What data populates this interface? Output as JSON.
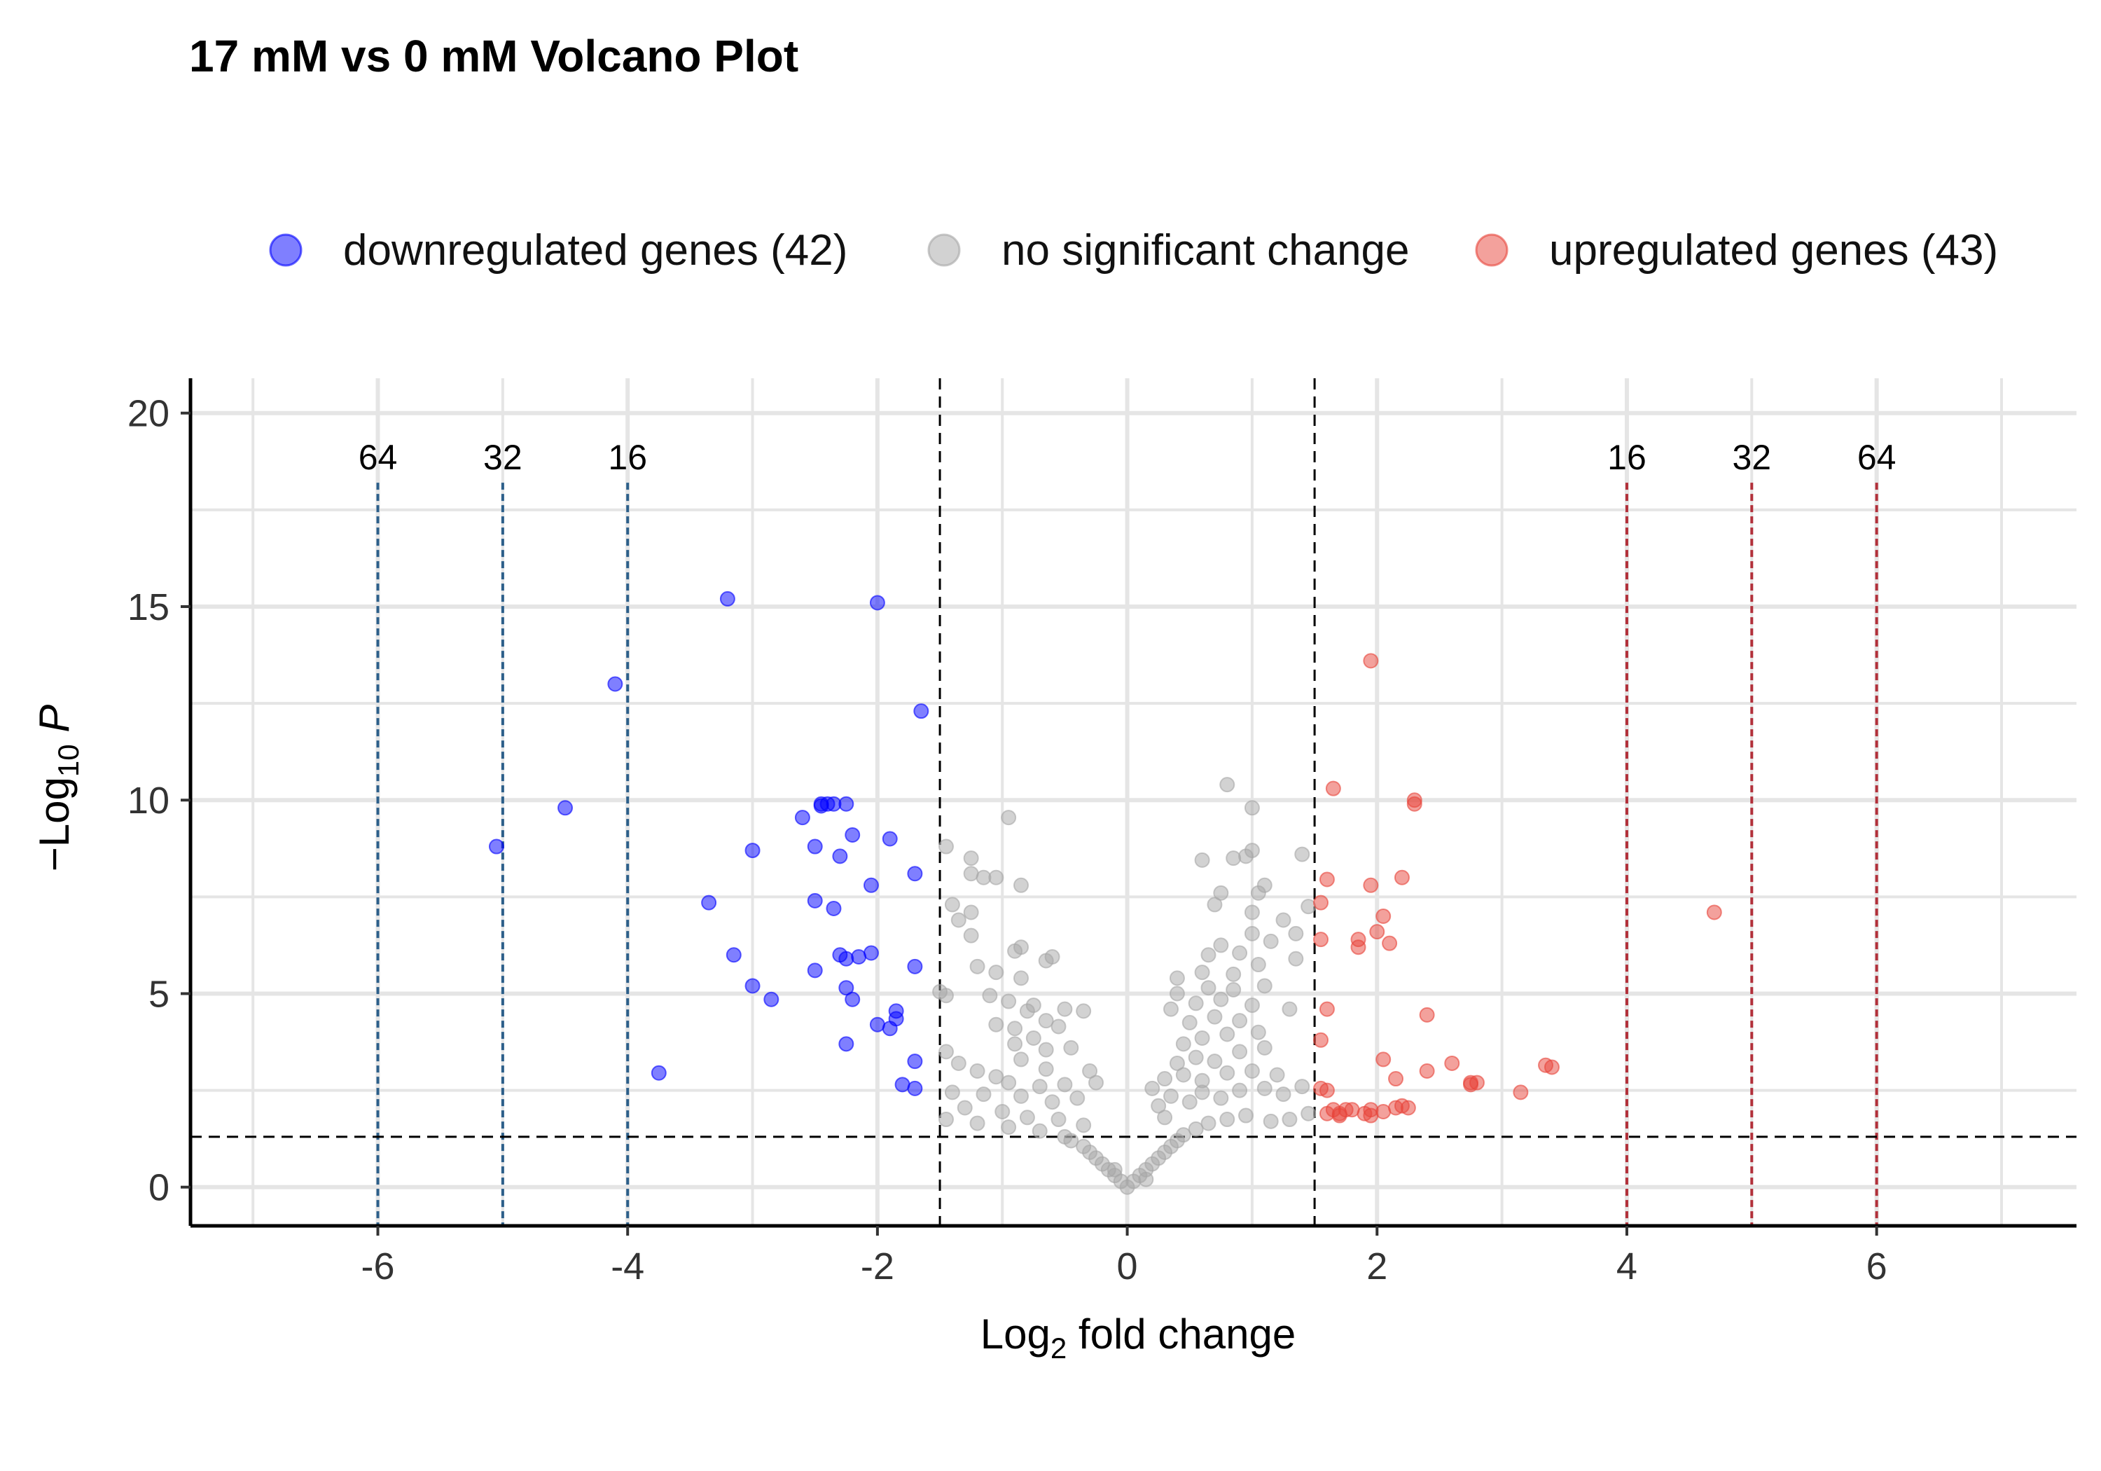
{
  "chart_data": {
    "type": "scatter",
    "title": "17 mM vs 0 mM Volcano Plot",
    "xlabel": {
      "prefix": "Log",
      "sub": "2",
      "suffix": " fold change"
    },
    "ylabel": {
      "prefix": "−Log",
      "sub": "10",
      "suffix": " ",
      "italic": "P"
    },
    "xlim": [
      -7.5,
      7.6
    ],
    "ylim": [
      -1,
      20.9
    ],
    "xticks": [
      -6,
      -4,
      -2,
      0,
      2,
      4,
      6
    ],
    "xtick_labels": [
      "-6",
      "-4",
      "-2",
      "0",
      "2",
      "4",
      "6"
    ],
    "yticks": [
      0,
      5,
      10,
      15,
      20
    ],
    "ytick_labels": [
      "0",
      "5",
      "10",
      "15",
      "20"
    ],
    "grid": true,
    "legend_position": "top",
    "thresholds": {
      "fold_change": 1.5,
      "p_value_line": 1.3
    },
    "fold_change_lines": [
      {
        "x": -6,
        "label": "64",
        "color": "#2c5f8a"
      },
      {
        "x": -5,
        "label": "32",
        "color": "#2c5f8a"
      },
      {
        "x": -4,
        "label": "16",
        "color": "#2c5f8a"
      },
      {
        "x": 4,
        "label": "16",
        "color": "#b2303a"
      },
      {
        "x": 5,
        "label": "32",
        "color": "#b2303a"
      },
      {
        "x": 6,
        "label": "64",
        "color": "#b2303a"
      }
    ],
    "series": [
      {
        "name": "downregulated genes (42)",
        "color": "#0000ff",
        "points": [
          [
            -3.2,
            15.2
          ],
          [
            -2.0,
            15.1
          ],
          [
            -4.1,
            13.0
          ],
          [
            -1.65,
            12.3
          ],
          [
            -4.5,
            9.8
          ],
          [
            -5.05,
            8.8
          ],
          [
            -2.45,
            9.9
          ],
          [
            -2.4,
            9.9
          ],
          [
            -2.35,
            9.9
          ],
          [
            -2.25,
            9.9
          ],
          [
            -2.6,
            9.55
          ],
          [
            -1.9,
            9.0
          ],
          [
            -2.2,
            9.1
          ],
          [
            -2.5,
            8.8
          ],
          [
            -3.0,
            8.7
          ],
          [
            -2.3,
            8.55
          ],
          [
            -1.7,
            8.1
          ],
          [
            -2.05,
            7.8
          ],
          [
            -3.35,
            7.35
          ],
          [
            -2.5,
            7.4
          ],
          [
            -2.35,
            7.2
          ],
          [
            -3.15,
            6.0
          ],
          [
            -2.3,
            6.0
          ],
          [
            -2.05,
            6.05
          ],
          [
            -2.25,
            5.9
          ],
          [
            -2.15,
            5.95
          ],
          [
            -2.5,
            5.6
          ],
          [
            -1.7,
            5.7
          ],
          [
            -3.0,
            5.2
          ],
          [
            -2.25,
            5.15
          ],
          [
            -2.85,
            4.85
          ],
          [
            -2.2,
            4.85
          ],
          [
            -1.85,
            4.55
          ],
          [
            -1.85,
            4.35
          ],
          [
            -2.0,
            4.2
          ],
          [
            -1.9,
            4.1
          ],
          [
            -2.25,
            3.7
          ],
          [
            -1.7,
            3.25
          ],
          [
            -3.75,
            2.95
          ],
          [
            -1.8,
            2.65
          ],
          [
            -1.7,
            2.55
          ],
          [
            -2.45,
            9.85
          ]
        ]
      },
      {
        "name": "no significant change",
        "color": "#a6a6a6",
        "points": [
          [
            -1.45,
            8.8
          ],
          [
            -1.25,
            8.5
          ],
          [
            -1.25,
            8.1
          ],
          [
            -1.15,
            8.0
          ],
          [
            -1.05,
            8.0
          ],
          [
            -0.85,
            7.8
          ],
          [
            -0.95,
            9.55
          ],
          [
            -1.4,
            7.3
          ],
          [
            -1.25,
            7.1
          ],
          [
            -1.35,
            6.9
          ],
          [
            -1.25,
            6.5
          ],
          [
            -0.85,
            6.2
          ],
          [
            -0.9,
            6.1
          ],
          [
            -0.6,
            5.95
          ],
          [
            -0.65,
            5.85
          ],
          [
            -1.2,
            5.7
          ],
          [
            -1.05,
            5.55
          ],
          [
            -0.85,
            5.4
          ],
          [
            -1.5,
            5.05
          ],
          [
            -1.45,
            4.95
          ],
          [
            -1.1,
            4.95
          ],
          [
            -0.95,
            4.8
          ],
          [
            -0.75,
            4.7
          ],
          [
            -0.8,
            4.55
          ],
          [
            -0.5,
            4.6
          ],
          [
            -0.35,
            4.55
          ],
          [
            -0.65,
            4.3
          ],
          [
            -1.05,
            4.2
          ],
          [
            -0.9,
            4.1
          ],
          [
            -0.55,
            4.15
          ],
          [
            -0.75,
            3.85
          ],
          [
            -0.9,
            3.7
          ],
          [
            -1.45,
            3.5
          ],
          [
            -0.65,
            3.55
          ],
          [
            -0.45,
            3.6
          ],
          [
            -0.85,
            3.3
          ],
          [
            -1.35,
            3.2
          ],
          [
            -1.2,
            3.0
          ],
          [
            -0.65,
            3.05
          ],
          [
            -0.3,
            3.0
          ],
          [
            -1.05,
            2.85
          ],
          [
            -0.95,
            2.7
          ],
          [
            -0.7,
            2.6
          ],
          [
            -0.5,
            2.65
          ],
          [
            -0.25,
            2.7
          ],
          [
            -1.4,
            2.45
          ],
          [
            -1.15,
            2.4
          ],
          [
            -0.85,
            2.35
          ],
          [
            -0.6,
            2.2
          ],
          [
            -0.4,
            2.3
          ],
          [
            -1.3,
            2.05
          ],
          [
            -1.0,
            1.95
          ],
          [
            -0.8,
            1.8
          ],
          [
            -0.55,
            1.75
          ],
          [
            -0.35,
            1.6
          ],
          [
            -1.45,
            1.75
          ],
          [
            -1.2,
            1.65
          ],
          [
            -0.95,
            1.55
          ],
          [
            -0.7,
            1.45
          ],
          [
            -0.5,
            1.3
          ],
          [
            -0.45,
            1.2
          ],
          [
            -0.35,
            1.05
          ],
          [
            -0.3,
            0.9
          ],
          [
            -0.25,
            0.75
          ],
          [
            -0.2,
            0.6
          ],
          [
            -0.15,
            0.45
          ],
          [
            -0.1,
            0.3
          ],
          [
            -0.05,
            0.15
          ],
          [
            0.0,
            0.0
          ],
          [
            0.05,
            0.15
          ],
          [
            0.1,
            0.3
          ],
          [
            0.15,
            0.45
          ],
          [
            0.2,
            0.6
          ],
          [
            0.25,
            0.75
          ],
          [
            0.3,
            0.9
          ],
          [
            0.35,
            1.05
          ],
          [
            0.4,
            1.2
          ],
          [
            0.45,
            1.35
          ],
          [
            0.55,
            1.5
          ],
          [
            0.65,
            1.65
          ],
          [
            0.8,
            1.75
          ],
          [
            0.95,
            1.85
          ],
          [
            1.15,
            1.7
          ],
          [
            1.3,
            1.75
          ],
          [
            1.45,
            1.9
          ],
          [
            0.3,
            1.8
          ],
          [
            0.25,
            2.1
          ],
          [
            0.35,
            2.35
          ],
          [
            0.5,
            2.2
          ],
          [
            0.6,
            2.45
          ],
          [
            0.75,
            2.3
          ],
          [
            0.9,
            2.5
          ],
          [
            1.1,
            2.55
          ],
          [
            1.25,
            2.4
          ],
          [
            1.4,
            2.6
          ],
          [
            0.2,
            2.55
          ],
          [
            0.3,
            2.8
          ],
          [
            0.45,
            2.9
          ],
          [
            0.6,
            2.75
          ],
          [
            0.8,
            2.95
          ],
          [
            1.0,
            3.0
          ],
          [
            1.2,
            2.9
          ],
          [
            0.4,
            3.2
          ],
          [
            0.55,
            3.35
          ],
          [
            0.7,
            3.25
          ],
          [
            0.9,
            3.5
          ],
          [
            1.1,
            3.6
          ],
          [
            0.45,
            3.7
          ],
          [
            0.6,
            3.85
          ],
          [
            0.8,
            3.95
          ],
          [
            1.05,
            4.0
          ],
          [
            0.5,
            4.25
          ],
          [
            0.7,
            4.4
          ],
          [
            0.9,
            4.3
          ],
          [
            0.35,
            4.6
          ],
          [
            0.55,
            4.75
          ],
          [
            0.75,
            4.85
          ],
          [
            1.0,
            4.7
          ],
          [
            1.3,
            4.6
          ],
          [
            0.4,
            5.0
          ],
          [
            0.65,
            5.15
          ],
          [
            0.85,
            5.1
          ],
          [
            1.1,
            5.2
          ],
          [
            0.4,
            5.4
          ],
          [
            0.6,
            5.55
          ],
          [
            0.85,
            5.5
          ],
          [
            1.05,
            5.75
          ],
          [
            1.35,
            5.9
          ],
          [
            0.65,
            6.0
          ],
          [
            0.9,
            6.05
          ],
          [
            1.15,
            6.35
          ],
          [
            1.35,
            6.55
          ],
          [
            0.75,
            6.25
          ],
          [
            1.0,
            6.55
          ],
          [
            1.25,
            6.9
          ],
          [
            0.7,
            7.3
          ],
          [
            1.0,
            7.1
          ],
          [
            1.45,
            7.25
          ],
          [
            0.75,
            7.6
          ],
          [
            1.05,
            7.6
          ],
          [
            1.1,
            7.8
          ],
          [
            1.4,
            8.6
          ],
          [
            0.85,
            8.5
          ],
          [
            0.95,
            8.55
          ],
          [
            1.0,
            8.7
          ],
          [
            0.6,
            8.45
          ],
          [
            1.0,
            9.8
          ],
          [
            0.8,
            10.4
          ],
          [
            -0.1,
            0.45
          ],
          [
            0.15,
            0.2
          ]
        ]
      },
      {
        "name": "upregulated genes (43)",
        "color": "#e8443a",
        "points": [
          [
            1.95,
            13.6
          ],
          [
            1.65,
            10.3
          ],
          [
            2.3,
            10.0
          ],
          [
            2.3,
            9.9
          ],
          [
            1.6,
            7.95
          ],
          [
            2.2,
            8.0
          ],
          [
            1.95,
            7.8
          ],
          [
            1.55,
            7.35
          ],
          [
            2.05,
            7.0
          ],
          [
            4.7,
            7.1
          ],
          [
            1.55,
            6.4
          ],
          [
            1.85,
            6.4
          ],
          [
            2.0,
            6.6
          ],
          [
            2.1,
            6.3
          ],
          [
            1.85,
            6.2
          ],
          [
            1.6,
            4.6
          ],
          [
            2.4,
            4.45
          ],
          [
            1.55,
            3.8
          ],
          [
            2.05,
            3.3
          ],
          [
            2.6,
            3.2
          ],
          [
            3.35,
            3.15
          ],
          [
            3.4,
            3.1
          ],
          [
            2.15,
            2.8
          ],
          [
            2.4,
            3.0
          ],
          [
            2.75,
            2.7
          ],
          [
            2.8,
            2.7
          ],
          [
            2.75,
            2.65
          ],
          [
            3.15,
            2.45
          ],
          [
            1.55,
            2.55
          ],
          [
            1.6,
            2.5
          ],
          [
            1.6,
            1.9
          ],
          [
            1.7,
            1.9
          ],
          [
            1.75,
            2.0
          ],
          [
            1.7,
            1.85
          ],
          [
            1.8,
            2.0
          ],
          [
            1.9,
            1.9
          ],
          [
            1.95,
            2.0
          ],
          [
            2.05,
            1.95
          ],
          [
            2.2,
            2.1
          ],
          [
            2.15,
            2.05
          ],
          [
            2.25,
            2.05
          ],
          [
            1.65,
            2.0
          ],
          [
            1.95,
            1.85
          ]
        ]
      }
    ]
  }
}
